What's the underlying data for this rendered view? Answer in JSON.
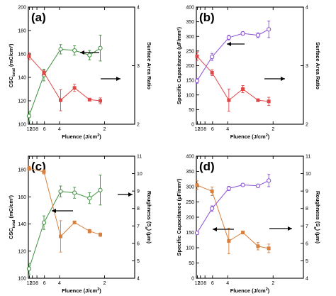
{
  "chart_data": [
    {
      "type": "line",
      "panel": "(a)",
      "xlabel": "Fluence (J/cm",
      "xlabel_sup": "2",
      "xlabel_end": ")",
      "x_scale": "reciprocal",
      "x_ticks": [
        12,
        10,
        8,
        6,
        4,
        2
      ],
      "left_axis": {
        "label_main": "CSC",
        "label_sub": "total",
        "label_rest": " (mC/cm²)",
        "range": [
          100,
          200
        ],
        "ticks": [
          100,
          120,
          140,
          160,
          180,
          200
        ],
        "color": "#2e8b2e"
      },
      "right_axis": {
        "label": "Surface Area Ratio",
        "range": [
          2,
          4
        ],
        "ticks": [
          2,
          3,
          4
        ],
        "color": "#d43b3b"
      },
      "series": [
        {
          "axis": "left",
          "color": "#3d8f3d",
          "marker": "circle-open",
          "x": [
            12.3,
            6.1,
            3.9,
            3.0,
            2.4,
            2.1
          ],
          "y": [
            107,
            142,
            164,
            163,
            159,
            165
          ],
          "err": [
            4,
            5,
            4,
            4,
            4,
            11
          ]
        },
        {
          "axis": "right",
          "color": "#e04848",
          "marker": "square-filled",
          "x": [
            12.3,
            6.1,
            3.9,
            3.0,
            2.4,
            2.1
          ],
          "y": [
            3.16,
            2.88,
            2.41,
            2.62,
            2.42,
            2.4
          ],
          "err": [
            0.06,
            0.04,
            0.18,
            0.06,
            0.02,
            0.05
          ]
        }
      ],
      "arrows": [
        {
          "direction": "left",
          "color": "#000"
        },
        {
          "direction": "right",
          "color": "#000"
        }
      ]
    },
    {
      "type": "line",
      "panel": "(b)",
      "xlabel": "Fluence (J/cm",
      "xlabel_sup": "2",
      "xlabel_end": ")",
      "x_scale": "reciprocal",
      "x_ticks": [
        12,
        10,
        8,
        6,
        4,
        2
      ],
      "left_axis": {
        "label_main": "Specific Capacitance (µF/mm²)",
        "label_sub": "",
        "label_rest": "",
        "range": [
          0,
          400
        ],
        "ticks": [
          0,
          50,
          100,
          150,
          200,
          250,
          300,
          350,
          400
        ],
        "color": "#e04848"
      },
      "right_axis": {
        "label": "Surface Area Ratio",
        "range": [
          2,
          4
        ],
        "ticks": [
          2,
          3,
          4
        ],
        "color": "#7c3acd"
      },
      "series": [
        {
          "axis": "left",
          "color": "#e04848",
          "marker": "square-filled",
          "x": [
            12.3,
            6.1,
            3.9,
            3.0,
            2.4,
            2.1
          ],
          "y": [
            232,
            176,
            82,
            120,
            82,
            78
          ],
          "err": [
            14,
            10,
            38,
            12,
            4,
            14
          ]
        },
        {
          "axis": "right",
          "color": "#8a4fd6",
          "marker": "circle-open",
          "x": [
            12.3,
            6.1,
            3.9,
            3.0,
            2.4,
            2.1
          ],
          "y": [
            2.74,
            3.15,
            3.48,
            3.55,
            3.52,
            3.62
          ],
          "err": [
            0.04,
            0.06,
            0.04,
            0.03,
            0.04,
            0.14
          ]
        }
      ],
      "arrows": [
        {
          "direction": "left",
          "color": "#000"
        },
        {
          "direction": "right",
          "color": "#000"
        }
      ]
    },
    {
      "type": "line",
      "panel": "(c)",
      "xlabel": "Fluence (J/cm",
      "xlabel_sup": "2",
      "xlabel_end": ")",
      "x_scale": "reciprocal",
      "x_ticks": [
        12,
        10,
        8,
        6,
        4,
        2
      ],
      "left_axis": {
        "label_main": "CSC",
        "label_sub": "total",
        "label_rest": " (mC/cm²)",
        "range": [
          100,
          190
        ],
        "ticks": [
          100,
          120,
          140,
          160,
          180
        ],
        "color": "#2e8b2e"
      },
      "right_axis": {
        "label": "Roughness (S",
        "label_sub": "a",
        "label_end": ") (µm)",
        "range": [
          4,
          11
        ],
        "ticks": [
          4,
          5,
          6,
          7,
          8,
          9,
          10,
          11
        ],
        "color": "#d2783a"
      },
      "series": [
        {
          "axis": "left",
          "color": "#3d8f3d",
          "marker": "circle-open",
          "x": [
            12.3,
            6.1,
            3.9,
            3.0,
            2.4,
            2.1
          ],
          "y": [
            107,
            141,
            164,
            163,
            159,
            165
          ],
          "err": [
            4,
            5,
            4,
            4,
            4,
            11
          ]
        },
        {
          "axis": "right",
          "color": "#d9803e",
          "marker": "square-filled",
          "x": [
            12.3,
            6.1,
            3.9,
            3.0,
            2.4,
            2.1
          ],
          "y": [
            10.3,
            10.1,
            6.4,
            7.2,
            6.7,
            6.5
          ],
          "err": [
            0.12,
            0.12,
            0.9,
            0.05,
            0.1,
            0.1
          ]
        }
      ],
      "arrows": [
        {
          "direction": "left",
          "color": "#000"
        },
        {
          "direction": "right",
          "color": "#000"
        }
      ]
    },
    {
      "type": "line",
      "panel": "(d)",
      "xlabel": "Fluence (J/cm",
      "xlabel_sup": "2",
      "xlabel_end": ")",
      "x_scale": "reciprocal",
      "x_ticks": [
        12,
        10,
        8,
        6,
        4,
        2
      ],
      "left_axis": {
        "label_main": "Specific Capacitance (µF/mm²)",
        "label_sub": "",
        "label_rest": "",
        "range": [
          0,
          400
        ],
        "ticks": [
          0,
          50,
          100,
          150,
          200,
          250,
          300,
          350,
          400
        ],
        "color": "#d2783a"
      },
      "right_axis": {
        "label": "Roughness (S",
        "label_sub": "a",
        "label_end": ") (µm)",
        "range": [
          4,
          11
        ],
        "ticks": [
          4,
          5,
          6,
          7,
          8,
          9,
          10,
          11
        ],
        "color": "#7c3acd"
      },
      "series": [
        {
          "axis": "left",
          "color": "#d9803e",
          "marker": "square-filled",
          "x": [
            12.3,
            6.1,
            3.9,
            3.0,
            2.4,
            2.1
          ],
          "y": [
            305,
            285,
            122,
            150,
            105,
            98
          ],
          "err": [
            14,
            14,
            42,
            5,
            12,
            14
          ]
        },
        {
          "axis": "right",
          "color": "#8a4fd6",
          "marker": "circle-open",
          "x": [
            12.3,
            6.1,
            3.9,
            3.0,
            2.4,
            2.1
          ],
          "y": [
            6.6,
            8.0,
            9.15,
            9.35,
            9.3,
            9.6
          ],
          "err": [
            0.1,
            0.15,
            0.12,
            0.08,
            0.1,
            0.35
          ]
        }
      ],
      "arrows": [
        {
          "direction": "left",
          "color": "#000"
        },
        {
          "direction": "right",
          "color": "#000"
        }
      ]
    }
  ]
}
